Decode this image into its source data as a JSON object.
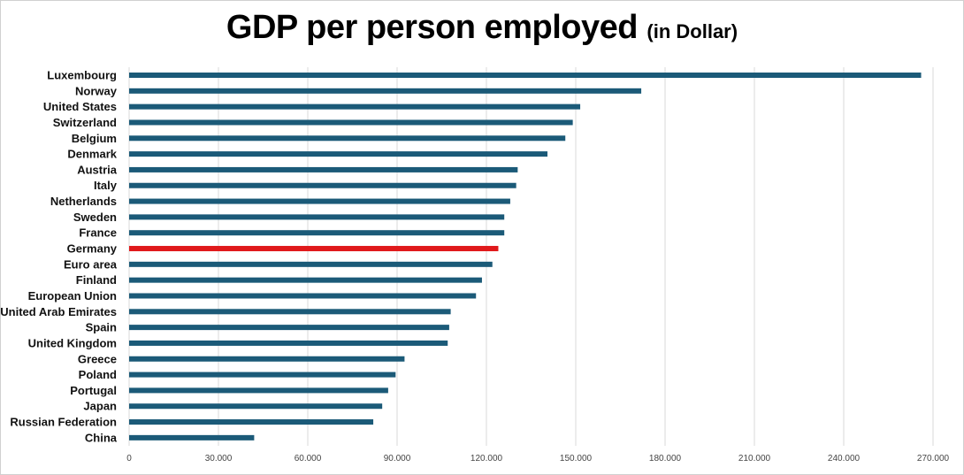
{
  "chart_data": {
    "type": "bar",
    "orientation": "horizontal",
    "title": "GDP per person employed",
    "subtitle": "(in Dollar)",
    "xlabel": "",
    "ylabel": "",
    "xlim": [
      0,
      270000
    ],
    "ticks": [
      {
        "value": 0,
        "label": "0"
      },
      {
        "value": 30000,
        "label": "30.000"
      },
      {
        "value": 60000,
        "label": "60.000"
      },
      {
        "value": 90000,
        "label": "90.000"
      },
      {
        "value": 120000,
        "label": "120.000"
      },
      {
        "value": 150000,
        "label": "150.000"
      },
      {
        "value": 180000,
        "label": "180.000"
      },
      {
        "value": 210000,
        "label": "210.000"
      },
      {
        "value": 240000,
        "label": "240.000"
      },
      {
        "value": 270000,
        "label": "270.000"
      }
    ],
    "grid": true,
    "legend": "none",
    "bar_color": "#1b5a78",
    "highlight_color": "#e0191b",
    "highlight_category": "Germany",
    "categories": [
      "Luxembourg",
      "Norway",
      "United States",
      "Switzerland",
      "Belgium",
      "Denmark",
      "Austria",
      "Italy",
      "Netherlands",
      "Sweden",
      "France",
      "Germany",
      "Euro area",
      "Finland",
      "European Union",
      "United Arab Emirates",
      "Spain",
      "United Kingdom",
      "Greece",
      "Poland",
      "Portugal",
      "Japan",
      "Russian Federation",
      "China"
    ],
    "values": [
      266000,
      172000,
      151500,
      149000,
      146500,
      140500,
      130500,
      130000,
      128000,
      126000,
      126000,
      124000,
      122000,
      118500,
      116500,
      108000,
      107500,
      107000,
      92500,
      89500,
      87000,
      85000,
      82000,
      42000
    ]
  }
}
